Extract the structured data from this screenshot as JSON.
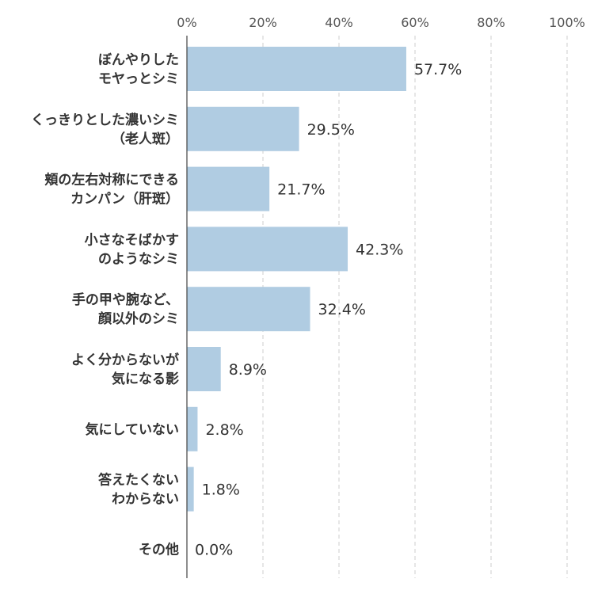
{
  "chart_data": {
    "type": "bar",
    "orientation": "horizontal",
    "categories": [
      [
        "ぼんやりした",
        "モヤっとシミ"
      ],
      [
        "くっきりとした濃いシミ",
        "（老人斑）"
      ],
      [
        "頬の左右対称にできる",
        "カンパン（肝斑）"
      ],
      [
        "小さなそばかす",
        "のようなシミ"
      ],
      [
        "手の甲や腕など、",
        "顔以外のシミ"
      ],
      [
        "よく分からないが",
        "気になる影"
      ],
      [
        "気にしていない"
      ],
      [
        "答えたくない",
        "わからない"
      ],
      [
        "その他"
      ]
    ],
    "values": [
      57.7,
      29.5,
      21.7,
      42.3,
      32.4,
      8.9,
      2.8,
      1.8,
      0.0
    ],
    "value_labels": [
      "57.7%",
      "29.5%",
      "21.7%",
      "42.3%",
      "32.4%",
      "8.9%",
      "2.8%",
      "1.8%",
      "0.0%"
    ],
    "xlim": [
      0,
      100
    ],
    "xticks": [
      0,
      20,
      40,
      60,
      80,
      100
    ],
    "xtick_labels": [
      "0%",
      "20%",
      "40%",
      "60%",
      "80%",
      "100%"
    ],
    "grid": true,
    "bar_color": "#b0cce2"
  }
}
